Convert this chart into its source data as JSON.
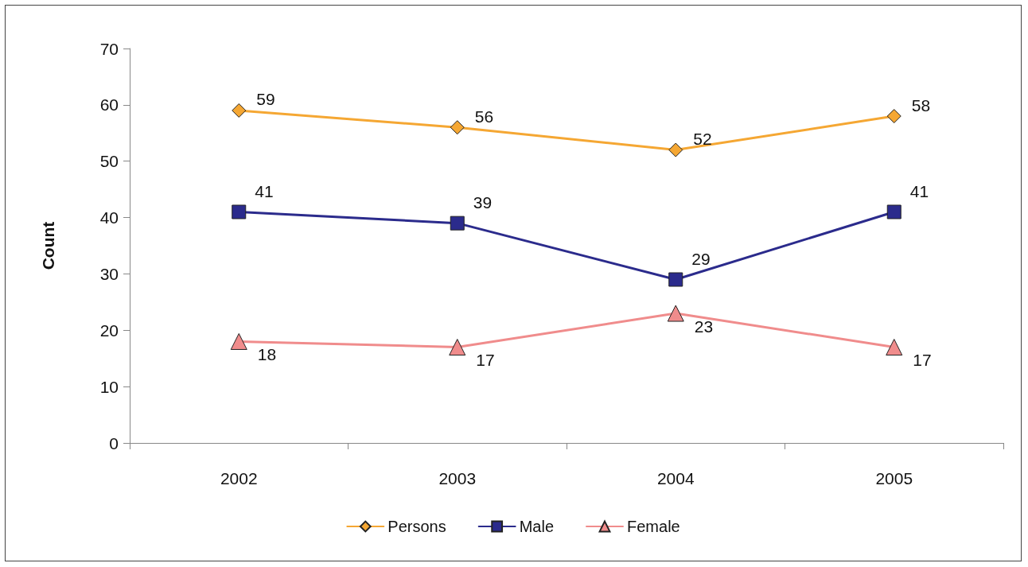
{
  "chart_data": {
    "type": "line",
    "ylabel": "Count",
    "categories": [
      "2002",
      "2003",
      "2004",
      "2005"
    ],
    "series": [
      {
        "name": "Persons",
        "color": "#f5a733",
        "marker": "diamond",
        "values": [
          59,
          56,
          52,
          58
        ]
      },
      {
        "name": "Male",
        "color": "#2b2b8c",
        "marker": "square",
        "values": [
          41,
          39,
          29,
          41
        ]
      },
      {
        "name": "Female",
        "color": "#f08c8c",
        "marker": "triangle",
        "values": [
          18,
          17,
          23,
          17
        ]
      }
    ],
    "ylim": [
      0,
      70
    ],
    "yticks": [
      0,
      10,
      20,
      30,
      40,
      50,
      60,
      70
    ],
    "grid": false,
    "legend": "bottom",
    "data_labels": true
  }
}
